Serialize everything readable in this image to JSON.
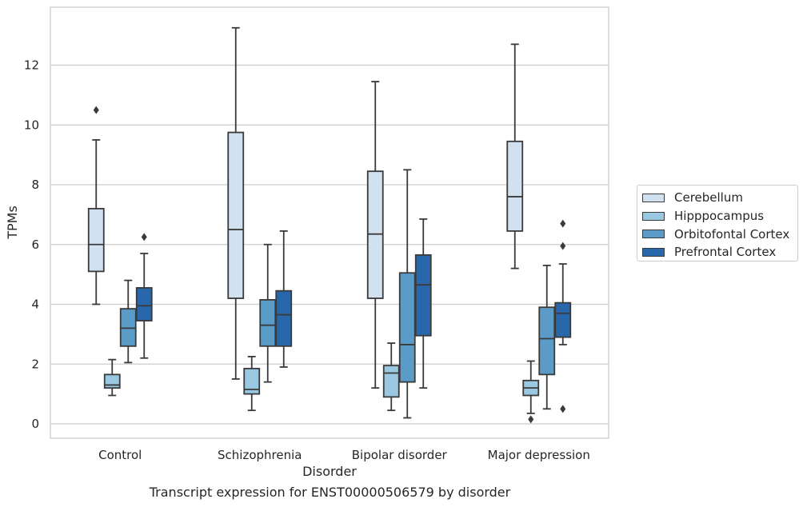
{
  "chart_data": {
    "type": "boxplot",
    "caption": "Transcript expression for ENST00000506579 by disorder",
    "xlabel": "Disorder",
    "ylabel": "TPMs",
    "ylim": [
      -0.45,
      13.9
    ],
    "yticks": [
      0,
      2,
      4,
      6,
      8,
      10,
      12
    ],
    "grid": true,
    "legend_position": "right",
    "categories": [
      "Control",
      "Schizophrenia",
      "Bipolar disorder",
      "Major depression"
    ],
    "series": [
      {
        "name": "Cerebellum",
        "color": "#d2e1f0",
        "boxes": [
          {
            "whisker_low": 4.0,
            "q1": 5.1,
            "median": 6.0,
            "q3": 7.2,
            "whisker_high": 9.5,
            "outliers": [
              10.5
            ]
          },
          {
            "whisker_low": 1.5,
            "q1": 4.2,
            "median": 6.5,
            "q3": 9.75,
            "whisker_high": 13.25,
            "outliers": []
          },
          {
            "whisker_low": 1.2,
            "q1": 4.2,
            "median": 6.35,
            "q3": 8.45,
            "whisker_high": 11.45,
            "outliers": []
          },
          {
            "whisker_low": 5.2,
            "q1": 6.45,
            "median": 7.6,
            "q3": 9.45,
            "whisker_high": 12.7,
            "outliers": []
          }
        ]
      },
      {
        "name": "Hipppocampus",
        "color": "#9ac8e0",
        "boxes": [
          {
            "whisker_low": 0.95,
            "q1": 1.2,
            "median": 1.3,
            "q3": 1.65,
            "whisker_high": 2.15,
            "outliers": []
          },
          {
            "whisker_low": 0.45,
            "q1": 1.0,
            "median": 1.15,
            "q3": 1.85,
            "whisker_high": 2.25,
            "outliers": []
          },
          {
            "whisker_low": 0.45,
            "q1": 0.9,
            "median": 1.7,
            "q3": 1.95,
            "whisker_high": 2.7,
            "outliers": []
          },
          {
            "whisker_low": 0.35,
            "q1": 0.95,
            "median": 1.2,
            "q3": 1.45,
            "whisker_high": 2.1,
            "outliers": [
              0.15
            ]
          }
        ]
      },
      {
        "name": "Orbitofontal Cortex",
        "color": "#5a9bc8",
        "boxes": [
          {
            "whisker_low": 2.05,
            "q1": 2.6,
            "median": 3.2,
            "q3": 3.85,
            "whisker_high": 4.8,
            "outliers": []
          },
          {
            "whisker_low": 1.4,
            "q1": 2.6,
            "median": 3.3,
            "q3": 4.15,
            "whisker_high": 6.0,
            "outliers": []
          },
          {
            "whisker_low": 0.2,
            "q1": 1.4,
            "median": 2.65,
            "q3": 5.05,
            "whisker_high": 8.5,
            "outliers": []
          },
          {
            "whisker_low": 0.5,
            "q1": 1.65,
            "median": 2.85,
            "q3": 3.9,
            "whisker_high": 5.3,
            "outliers": []
          }
        ]
      },
      {
        "name": "Prefrontal Cortex",
        "color": "#2867a9",
        "boxes": [
          {
            "whisker_low": 2.2,
            "q1": 3.45,
            "median": 3.95,
            "q3": 4.55,
            "whisker_high": 5.7,
            "outliers": [
              6.25
            ]
          },
          {
            "whisker_low": 1.9,
            "q1": 2.6,
            "median": 3.65,
            "q3": 4.45,
            "whisker_high": 6.45,
            "outliers": []
          },
          {
            "whisker_low": 1.2,
            "q1": 2.95,
            "median": 4.65,
            "q3": 5.65,
            "whisker_high": 6.85,
            "outliers": []
          },
          {
            "whisker_low": 2.65,
            "q1": 2.9,
            "median": 3.7,
            "q3": 4.05,
            "whisker_high": 5.35,
            "outliers": [
              6.7,
              5.95,
              0.5
            ]
          }
        ]
      }
    ]
  }
}
